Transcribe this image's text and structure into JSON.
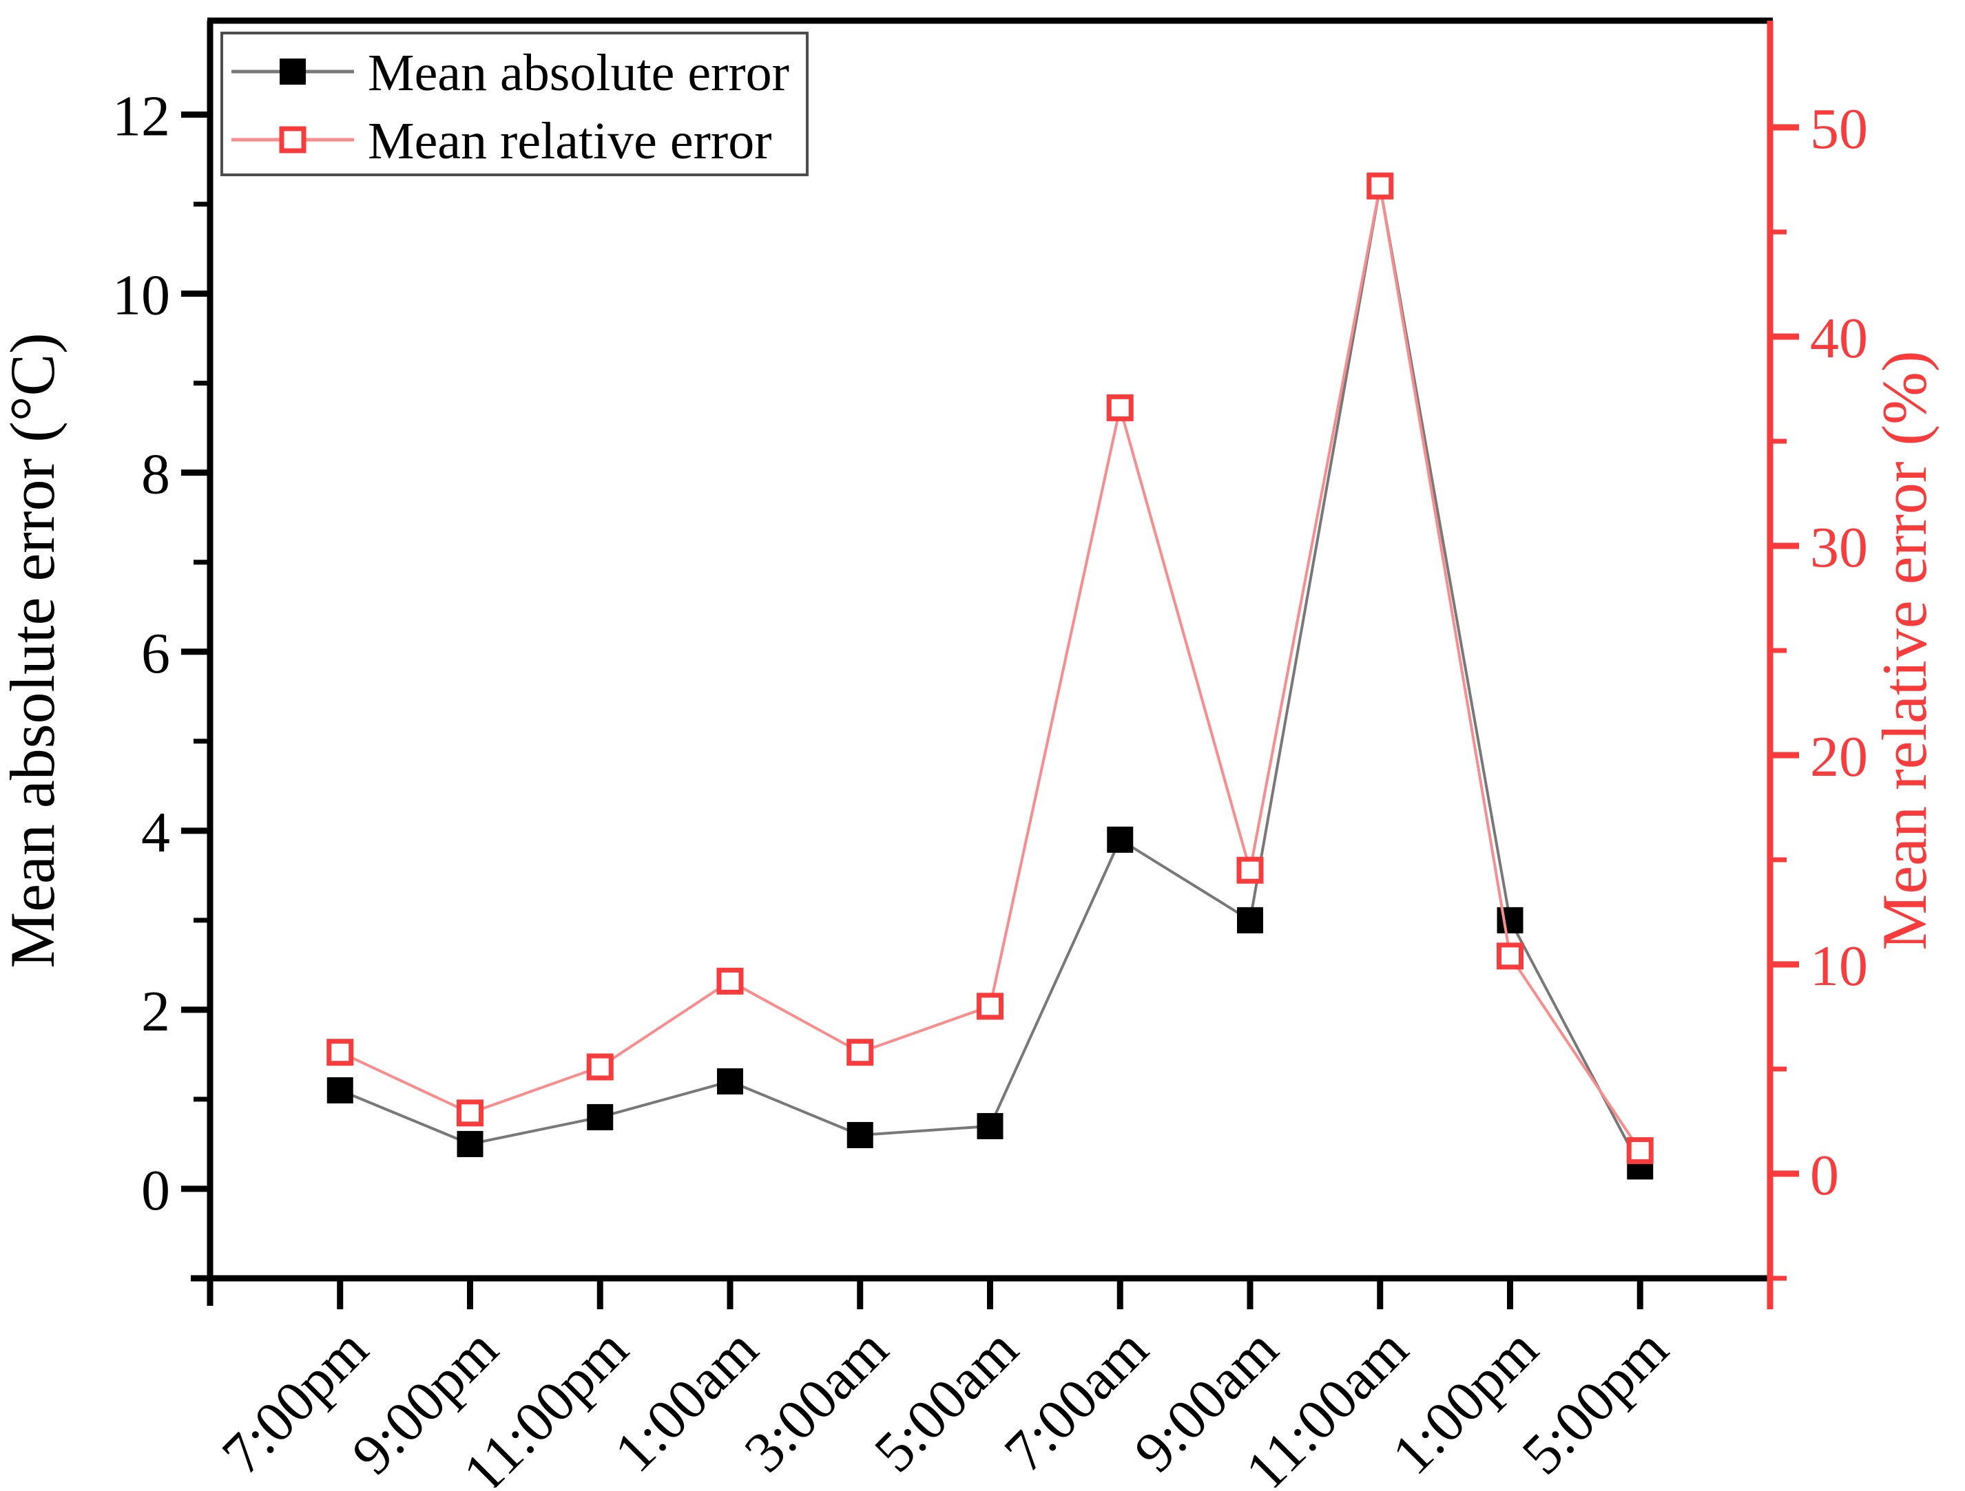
{
  "chart_data": {
    "type": "line",
    "title": "",
    "xlabel": "",
    "ylabel_left": "Mean absolute error (°C)",
    "ylabel_right": "Mean relative error (%)",
    "categories": [
      "7:00pm",
      "9:00pm",
      "11:00pm",
      "1:00am",
      "3:00am",
      "5:00am",
      "7:00am",
      "9:00am",
      "11:00am",
      "1:00pm",
      "5:00pm"
    ],
    "series": [
      {
        "name": "Mean absolute error",
        "axis": "left",
        "marker": "filled-square",
        "marker_color": "#000000",
        "line_color": "#787878",
        "values": [
          1.1,
          0.5,
          0.8,
          1.2,
          0.6,
          0.7,
          3.9,
          3.0,
          11.2,
          3.0,
          0.25
        ]
      },
      {
        "name": "Mean relative error",
        "axis": "right",
        "marker": "open-square",
        "marker_color": "#fa3b3b",
        "line_color": "#f98c8c",
        "values": [
          5.8,
          2.9,
          5.1,
          9.2,
          5.8,
          8.0,
          36.6,
          14.5,
          47.2,
          10.4,
          1.1
        ]
      }
    ],
    "yticks_left": [
      0,
      2,
      4,
      6,
      8,
      10,
      12
    ],
    "yticks_minor_left": [
      -1,
      1,
      3,
      5,
      7,
      9,
      11
    ],
    "ylim_left": [
      -1.0,
      13.05
    ],
    "yticks_right": [
      0,
      10,
      20,
      30,
      40,
      50
    ],
    "yticks_minor_right": [
      -5,
      5,
      15,
      25,
      35,
      45
    ],
    "ylim_right": [
      -5.0,
      55.1
    ],
    "legend_position": "top-left",
    "grid": false
  },
  "colors": {
    "left_axis": "#000000",
    "right_axis": "#fa3b3b",
    "background": "#ffffff",
    "legend_border": "#4d4d4d"
  }
}
